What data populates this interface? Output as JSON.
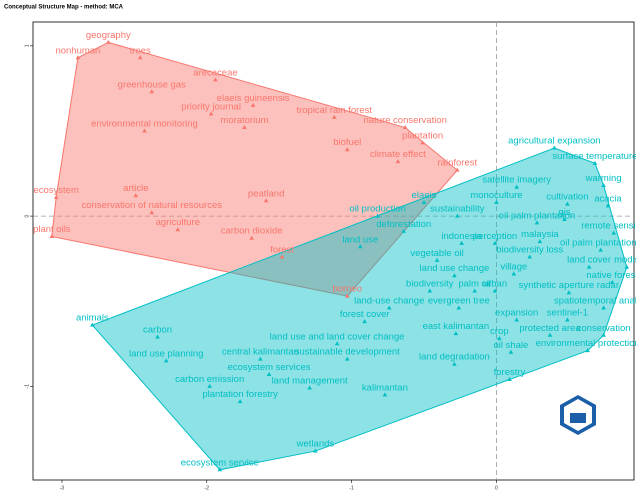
{
  "chart_data": {
    "type": "scatter",
    "title": "Conceptual Structure Map - method: MCA",
    "xlim": [
      -3.2,
      0.95
    ],
    "ylim": [
      -1.55,
      1.14
    ],
    "xticks": [
      -3,
      -2,
      -1,
      0
    ],
    "yticks": [
      -1,
      0,
      1
    ],
    "series": [
      {
        "color": "#f8766d",
        "labels": [
          "geography",
          "nonhuman",
          "trees",
          "arecaceae",
          "greenhouse gas",
          "elaeis guineensis",
          "priority journal",
          "tropical rain forest",
          "moratorium",
          "nature conservation",
          "environmental monitoring",
          "plantation",
          "biofuel",
          "climate effect",
          "rainforest",
          "article",
          "ecosystem",
          "peatland",
          "conservation of natural resources",
          "plant oils",
          "agriculture",
          "carbon dioxide",
          "forest",
          "borneo"
        ],
        "x": [
          -2.68,
          -2.89,
          -2.46,
          -1.94,
          -2.38,
          -1.68,
          -1.97,
          -1.12,
          -1.74,
          -0.63,
          -2.43,
          -0.51,
          -1.03,
          -0.68,
          -0.27,
          -2.49,
          -3.04,
          -1.59,
          -2.38,
          -3.07,
          -2.2,
          -1.69,
          -1.48,
          -1.03
        ],
        "values": [
          1.02,
          0.93,
          0.93,
          0.8,
          0.73,
          0.65,
          0.6,
          0.58,
          0.52,
          0.52,
          0.5,
          0.43,
          0.39,
          0.32,
          0.27,
          0.12,
          0.11,
          0.09,
          0.02,
          -0.12,
          -0.08,
          -0.13,
          -0.24,
          -0.47
        ]
      },
      {
        "color": "#00bfc4",
        "labels": [
          "agricultural expansion",
          "surface temperature",
          "warming",
          "satellite imagery",
          "monoculture",
          "cultivation",
          "acacia",
          "elaeis",
          "oil production",
          "sustainability",
          "oil palm plantation",
          "gis",
          "deforestation",
          "remote sensing",
          "malaysia",
          "indonesia",
          "perception",
          "land use",
          "oil palm plantations",
          "biodiversity loss",
          "vegetable oil",
          "land cover",
          "modis",
          "land use change",
          "village",
          "urban",
          "palm oil",
          "biodiversity",
          "native forest",
          "synthetic aperture radar",
          "land-use change",
          "evergreen tree",
          "spatiotemporal analysis",
          "forest cover",
          "expansion",
          "sentinel-1",
          "east kalimantan",
          "crop",
          "protected area",
          "conservation",
          "land use and land cover change",
          "animals",
          "carbon",
          "environmental protection",
          "oil shale",
          "land degradation",
          "land use planning",
          "central kalimantan",
          "sustainable development",
          "ecosystem services",
          "carbon emission",
          "land management",
          "kalimantan",
          "forestry",
          "plantation forestry",
          "wetlands",
          "ecosystem service"
        ],
        "x": [
          0.4,
          0.68,
          0.74,
          0.14,
          0,
          0.49,
          0.77,
          -0.5,
          -0.82,
          -0.27,
          0.28,
          0.47,
          -0.64,
          0.81,
          0.3,
          -0.24,
          -0.01,
          -0.94,
          0.72,
          0.23,
          -0.41,
          0.64,
          0.9,
          -0.29,
          0.12,
          -0.01,
          -0.15,
          -0.46,
          0.8,
          0.5,
          -0.74,
          -0.26,
          0.74,
          -0.91,
          0.14,
          0.49,
          -0.28,
          0.02,
          0.37,
          0.74,
          -1.1,
          -2.79,
          -2.34,
          0.63,
          0.1,
          -0.29,
          -2.28,
          -1.63,
          -1.03,
          -1.57,
          -1.98,
          -1.29,
          -0.77,
          0.09,
          -1.77,
          -1.25,
          -1.91
        ],
        "values": [
          0.4,
          0.31,
          0.18,
          0.17,
          0.08,
          0.07,
          0.06,
          0.08,
          0,
          0,
          -0.04,
          -0.02,
          -0.09,
          -0.1,
          -0.15,
          -0.16,
          -0.16,
          -0.18,
          -0.2,
          -0.24,
          -0.26,
          -0.3,
          -0.3,
          -0.35,
          -0.34,
          -0.44,
          -0.44,
          -0.44,
          -0.39,
          -0.45,
          -0.54,
          -0.54,
          -0.54,
          -0.62,
          -0.61,
          -0.61,
          -0.69,
          -0.72,
          -0.7,
          -0.7,
          -0.75,
          -0.64,
          -0.71,
          -0.79,
          -0.8,
          -0.87,
          -0.85,
          -0.84,
          -0.84,
          -0.93,
          -1,
          -1.01,
          -1.05,
          -0.96,
          -1.09,
          -1.38,
          -1.49
        ]
      }
    ]
  }
}
